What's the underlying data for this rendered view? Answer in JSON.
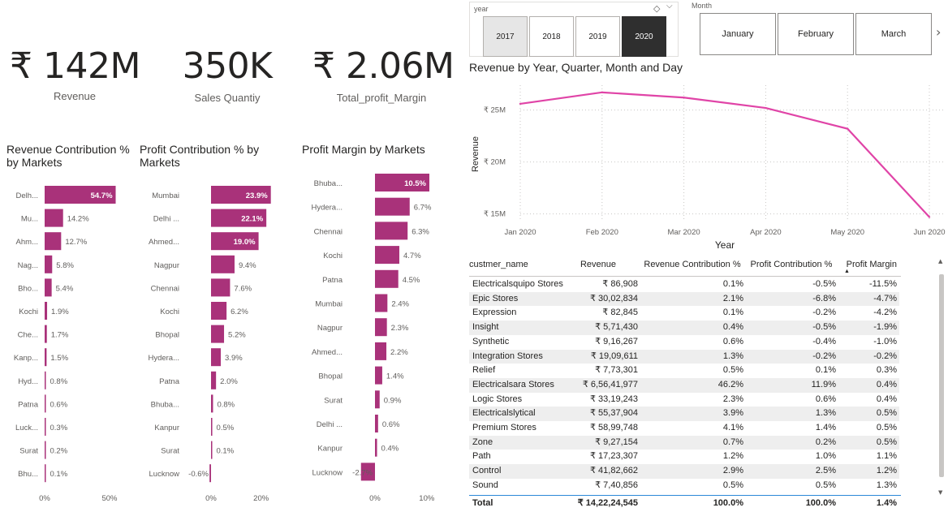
{
  "kpis": [
    {
      "value": "₹ 142M",
      "label": "Revenue"
    },
    {
      "value": "350K",
      "label": "Sales Quantiy"
    },
    {
      "value": "₹ 2.06M",
      "label": "Total_profit_Margin"
    }
  ],
  "slicers": {
    "year": {
      "title": "year",
      "options": [
        "2017",
        "2018",
        "2019",
        "2020"
      ],
      "selected": "2020"
    },
    "month": {
      "title": "Month",
      "options": [
        "January",
        "February",
        "March"
      ]
    }
  },
  "chart_data": [
    {
      "type": "bar",
      "orientation": "horizontal",
      "title": "Revenue Contribution % by Markets",
      "categories": [
        "Delh...",
        "Mu...",
        "Ahm...",
        "Nag...",
        "Bho...",
        "Kochi",
        "Che...",
        "Kanp...",
        "Hyd...",
        "Patna",
        "Luck...",
        "Surat",
        "Bhu..."
      ],
      "values": [
        54.7,
        14.2,
        12.7,
        5.8,
        5.4,
        1.9,
        1.7,
        1.5,
        0.8,
        0.6,
        0.3,
        0.2,
        0.1
      ],
      "data_labels": [
        "54.7%",
        "14.2%",
        "12.7%",
        "5.8%",
        "5.4%",
        "1.9%",
        "1.7%",
        "1.5%",
        "0.8%",
        "0.6%",
        "0.3%",
        "0.2%",
        "0.1%"
      ],
      "xticks": [
        "0%",
        "50%"
      ],
      "xlim": [
        0,
        55
      ]
    },
    {
      "type": "bar",
      "orientation": "horizontal",
      "title": "Profit Contribution % by Markets",
      "categories": [
        "Mumbai",
        "Delhi ...",
        "Ahmed...",
        "Nagpur",
        "Chennai",
        "Kochi",
        "Bhopal",
        "Hydera...",
        "Patna",
        "Bhuba...",
        "Kanpur",
        "Surat",
        "Lucknow"
      ],
      "values": [
        23.9,
        22.1,
        19.0,
        9.4,
        7.6,
        6.2,
        5.2,
        3.9,
        2.0,
        0.8,
        0.5,
        0.1,
        -0.6
      ],
      "data_labels": [
        "23.9%",
        "22.1%",
        "19.0%",
        "9.4%",
        "7.6%",
        "6.2%",
        "5.2%",
        "3.9%",
        "2.0%",
        "0.8%",
        "0.5%",
        "0.1%",
        "-0.6%"
      ],
      "xticks": [
        "0%",
        "20%"
      ],
      "xlim": [
        -0.6,
        24
      ]
    },
    {
      "type": "bar",
      "orientation": "horizontal",
      "title": "Profit Margin by Markets",
      "categories": [
        "Bhuba...",
        "Hydera...",
        "Chennai",
        "Kochi",
        "Patna",
        "Mumbai",
        "Nagpur",
        "Ahmed...",
        "Bhopal",
        "Surat",
        "Delhi ...",
        "Kanpur",
        "Lucknow"
      ],
      "values": [
        10.5,
        6.7,
        6.3,
        4.7,
        4.5,
        2.4,
        2.3,
        2.2,
        1.4,
        0.9,
        0.6,
        0.4,
        -2.7
      ],
      "data_labels": [
        "10.5%",
        "6.7%",
        "6.3%",
        "4.7%",
        "4.5%",
        "2.4%",
        "2.3%",
        "2.2%",
        "1.4%",
        "0.9%",
        "0.6%",
        "0.4%",
        "-2.7%"
      ],
      "xticks": [
        "0%",
        "10%"
      ],
      "xlim": [
        -2.7,
        10.5
      ]
    },
    {
      "type": "line",
      "title": "Revenue by Year, Quarter, Month and Day",
      "x": [
        "Jan 2020",
        "Feb 2020",
        "Mar 2020",
        "Apr 2020",
        "May 2020",
        "Jun 2020"
      ],
      "values": [
        25.6,
        26.7,
        26.2,
        25.2,
        23.2,
        14.7
      ],
      "xlabel": "Year",
      "ylabel": "Revenue",
      "yticks": [
        "₹ 15M",
        "₹ 20M",
        "₹ 25M"
      ],
      "ylim": [
        14.5,
        27
      ],
      "color": "#e044a7"
    }
  ],
  "table": {
    "headers": [
      "custmer_name",
      "Revenue",
      "Revenue Contribution %",
      "Profit Contribution %",
      "Profit Margin"
    ],
    "rows": [
      [
        "Electricalsquipo Stores",
        "₹ 86,908",
        "0.1%",
        "-0.5%",
        "-11.5%"
      ],
      [
        "Epic Stores",
        "₹ 30,02,834",
        "2.1%",
        "-6.8%",
        "-4.7%"
      ],
      [
        "Expression",
        "₹ 82,845",
        "0.1%",
        "-0.2%",
        "-4.2%"
      ],
      [
        "Insight",
        "₹ 5,71,430",
        "0.4%",
        "-0.5%",
        "-1.9%"
      ],
      [
        "Synthetic",
        "₹ 9,16,267",
        "0.6%",
        "-0.4%",
        "-1.0%"
      ],
      [
        "Integration Stores",
        "₹ 19,09,611",
        "1.3%",
        "-0.2%",
        "-0.2%"
      ],
      [
        "Relief",
        "₹ 7,73,301",
        "0.5%",
        "0.1%",
        "0.3%"
      ],
      [
        "Electricalsara Stores",
        "₹ 6,56,41,977",
        "46.2%",
        "11.9%",
        "0.4%"
      ],
      [
        "Logic Stores",
        "₹ 33,19,243",
        "2.3%",
        "0.6%",
        "0.4%"
      ],
      [
        "Electricalslytical",
        "₹ 55,37,904",
        "3.9%",
        "1.3%",
        "0.5%"
      ],
      [
        "Premium Stores",
        "₹ 58,99,748",
        "4.1%",
        "1.4%",
        "0.5%"
      ],
      [
        "Zone",
        "₹ 9,27,154",
        "0.7%",
        "0.2%",
        "0.5%"
      ],
      [
        "Path",
        "₹ 17,23,307",
        "1.2%",
        "1.0%",
        "1.1%"
      ],
      [
        "Control",
        "₹ 41,82,662",
        "2.9%",
        "2.5%",
        "1.2%"
      ],
      [
        "Sound",
        "₹ 7,40,856",
        "0.5%",
        "0.5%",
        "1.3%"
      ]
    ],
    "total": [
      "Total",
      "₹ 14,22,24,545",
      "100.0%",
      "100.0%",
      "1.4%"
    ]
  },
  "colors": {
    "bar": "#a9327a",
    "line": "#e044a7",
    "selected_tile": "#2f2f2f"
  }
}
